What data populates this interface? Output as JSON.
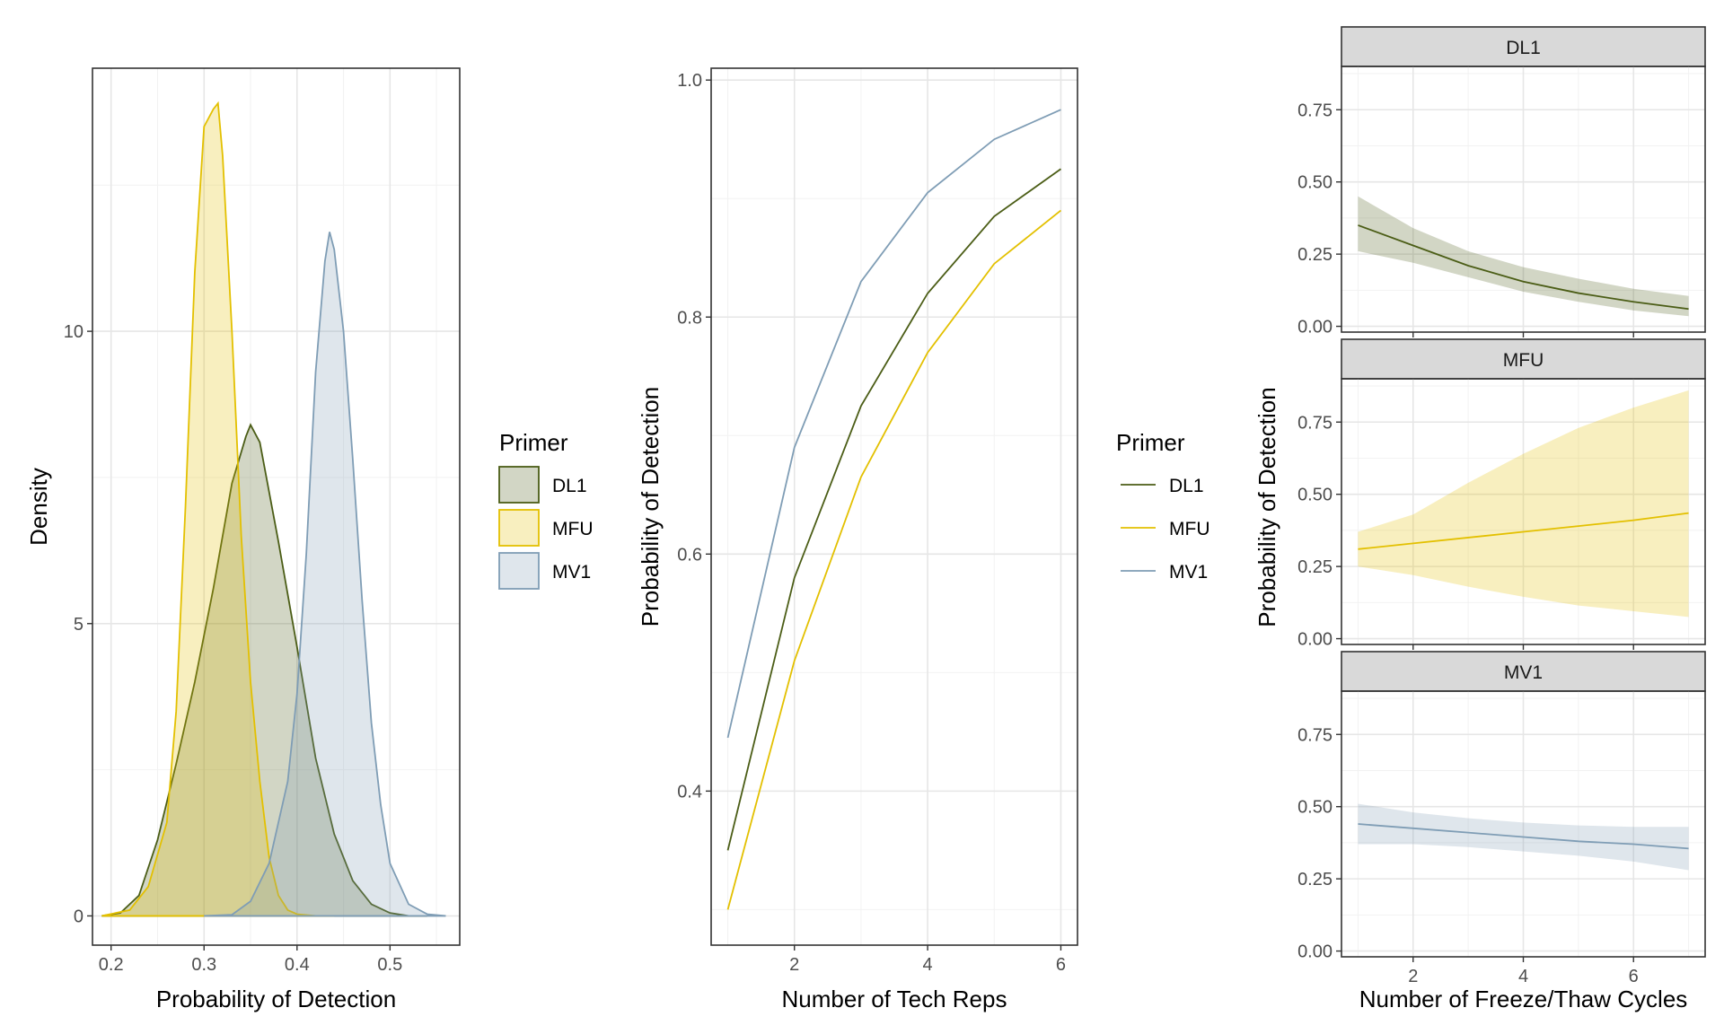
{
  "colors": {
    "DL1": "#4b5d16",
    "MFU": "#e3c000",
    "MV1": "#7f9db5"
  },
  "legend": [
    {
      "title": "Primer",
      "kind": "fill",
      "items": [
        "DL1",
        "MFU",
        "MV1"
      ]
    },
    {
      "title": "Primer",
      "kind": "line",
      "items": [
        "DL1",
        "MFU",
        "MV1"
      ]
    }
  ],
  "chart_data": [
    {
      "type": "area",
      "xlabel": "Probability of Detection",
      "ylabel": "Density",
      "xlim": [
        0.18,
        0.575
      ],
      "ylim": [
        -0.5,
        14.5
      ],
      "xticks": [
        0.2,
        0.3,
        0.4,
        0.5
      ],
      "yticks": [
        0,
        5,
        10
      ],
      "grid": true,
      "legend_position": "right",
      "series": [
        {
          "name": "DL1",
          "fill_alpha": 0.25,
          "x": [
            0.19,
            0.21,
            0.23,
            0.25,
            0.27,
            0.29,
            0.31,
            0.33,
            0.345,
            0.35,
            0.36,
            0.38,
            0.4,
            0.42,
            0.44,
            0.46,
            0.48,
            0.5,
            0.52,
            0.54
          ],
          "y": [
            0.0,
            0.05,
            0.35,
            1.3,
            2.6,
            4.0,
            5.6,
            7.4,
            8.2,
            8.4,
            8.1,
            6.4,
            4.6,
            2.7,
            1.4,
            0.6,
            0.2,
            0.05,
            0.0,
            0.0
          ]
        },
        {
          "name": "MFU",
          "fill_alpha": 0.25,
          "x": [
            0.19,
            0.22,
            0.24,
            0.26,
            0.27,
            0.28,
            0.29,
            0.3,
            0.31,
            0.315,
            0.32,
            0.33,
            0.34,
            0.35,
            0.36,
            0.37,
            0.38,
            0.39,
            0.4,
            0.42,
            0.44
          ],
          "y": [
            0.0,
            0.1,
            0.5,
            1.6,
            3.5,
            7.0,
            11.0,
            13.5,
            13.8,
            13.9,
            13.0,
            10.0,
            6.5,
            4.0,
            2.3,
            1.0,
            0.35,
            0.1,
            0.03,
            0.0,
            0.0
          ]
        },
        {
          "name": "MV1",
          "fill_alpha": 0.25,
          "x": [
            0.3,
            0.33,
            0.35,
            0.37,
            0.39,
            0.4,
            0.41,
            0.42,
            0.43,
            0.435,
            0.44,
            0.45,
            0.46,
            0.47,
            0.48,
            0.49,
            0.5,
            0.52,
            0.54,
            0.56
          ],
          "y": [
            0.0,
            0.02,
            0.25,
            0.9,
            2.3,
            3.8,
            6.2,
            9.3,
            11.2,
            11.7,
            11.4,
            10.0,
            7.8,
            5.4,
            3.3,
            1.9,
            0.9,
            0.2,
            0.03,
            0.0
          ]
        }
      ]
    },
    {
      "type": "line",
      "xlabel": "Number of Tech Reps",
      "ylabel": "Probability of Detection",
      "xlim": [
        0.75,
        6.25
      ],
      "ylim": [
        0.27,
        1.01
      ],
      "xticks": [
        2,
        4,
        6
      ],
      "yticks": [
        0.4,
        0.6,
        0.8,
        1.0
      ],
      "ytick_labels": [
        "0.4",
        "0.6",
        "0.8",
        "1.0"
      ],
      "grid": true,
      "legend_position": "right",
      "x": [
        1,
        2,
        3,
        4,
        5,
        6
      ],
      "series": [
        {
          "name": "DL1",
          "values": [
            0.35,
            0.58,
            0.725,
            0.82,
            0.885,
            0.925
          ]
        },
        {
          "name": "MFU",
          "values": [
            0.3,
            0.51,
            0.665,
            0.77,
            0.845,
            0.89
          ]
        },
        {
          "name": "MV1",
          "values": [
            0.445,
            0.69,
            0.83,
            0.905,
            0.95,
            0.975
          ]
        }
      ]
    },
    {
      "type": "line",
      "facets": [
        "DL1",
        "MFU",
        "MV1"
      ],
      "xlabel": "Number of Freeze/Thaw Cycles",
      "ylabel": "Probability of Detection",
      "xlim": [
        0.7,
        7.3
      ],
      "ylim": [
        -0.02,
        0.9
      ],
      "xticks": [
        2,
        4,
        6
      ],
      "yticks": [
        0,
        0.25,
        0.5,
        0.75
      ],
      "ytick_labels": [
        "0.00",
        "0.25",
        "0.50",
        "0.75"
      ],
      "grid": true,
      "x": [
        1,
        2,
        3,
        4,
        5,
        6,
        7
      ],
      "series": [
        {
          "name": "DL1",
          "values": [
            0.35,
            0.28,
            0.21,
            0.155,
            0.115,
            0.085,
            0.06
          ],
          "lower": [
            0.26,
            0.22,
            0.17,
            0.12,
            0.085,
            0.055,
            0.035
          ],
          "upper": [
            0.45,
            0.34,
            0.26,
            0.205,
            0.165,
            0.13,
            0.105
          ]
        },
        {
          "name": "MFU",
          "values": [
            0.31,
            0.33,
            0.35,
            0.37,
            0.39,
            0.41,
            0.435
          ],
          "lower": [
            0.25,
            0.22,
            0.18,
            0.145,
            0.115,
            0.095,
            0.075
          ],
          "upper": [
            0.37,
            0.43,
            0.54,
            0.64,
            0.73,
            0.8,
            0.86
          ]
        },
        {
          "name": "MV1",
          "values": [
            0.44,
            0.425,
            0.41,
            0.395,
            0.38,
            0.37,
            0.355
          ],
          "lower": [
            0.37,
            0.37,
            0.36,
            0.345,
            0.33,
            0.31,
            0.28
          ],
          "upper": [
            0.51,
            0.48,
            0.46,
            0.445,
            0.435,
            0.43,
            0.43
          ]
        }
      ]
    }
  ]
}
